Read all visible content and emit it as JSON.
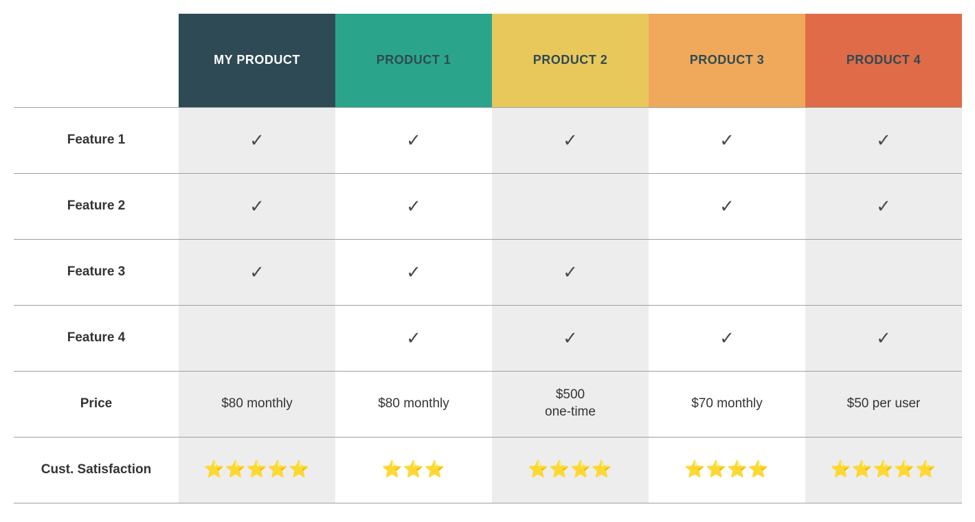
{
  "table": {
    "type": "comparison-table",
    "background_color": "#ffffff",
    "shaded_column_bg": "#ededed",
    "border_color": "#9e9e9e",
    "checkmark_glyph": "✓",
    "checkmark_color": "#4a4a4a",
    "star_glyph": "⭐",
    "row_label_fontsize": 18,
    "cell_fontsize": 19,
    "header_fontsize": 18,
    "columns": [
      {
        "key": "my_product",
        "label": "MY PRODUCT",
        "header_bg": "#2e4a54",
        "header_text_color": "#ffffff",
        "shaded": true
      },
      {
        "key": "product_1",
        "label": "PRODUCT 1",
        "header_bg": "#2aa58b",
        "header_text_color": "#2e4a54",
        "shaded": false
      },
      {
        "key": "product_2",
        "label": "PRODUCT 2",
        "header_bg": "#e8c85b",
        "header_text_color": "#2e4a54",
        "shaded": true
      },
      {
        "key": "product_3",
        "label": "PRODUCT 3",
        "header_bg": "#f0a95a",
        "header_text_color": "#2e4a54",
        "shaded": false
      },
      {
        "key": "product_4",
        "label": "PRODUCT 4",
        "header_bg": "#e06b48",
        "header_text_color": "#2e4a54",
        "shaded": true
      }
    ],
    "rows": [
      {
        "label": "Feature 1",
        "type": "check",
        "values": {
          "my_product": true,
          "product_1": true,
          "product_2": true,
          "product_3": true,
          "product_4": true
        }
      },
      {
        "label": "Feature 2",
        "type": "check",
        "values": {
          "my_product": true,
          "product_1": true,
          "product_2": false,
          "product_3": true,
          "product_4": true
        }
      },
      {
        "label": "Feature 3",
        "type": "check",
        "values": {
          "my_product": true,
          "product_1": true,
          "product_2": true,
          "product_3": false,
          "product_4": false
        }
      },
      {
        "label": "Feature 4",
        "type": "check",
        "values": {
          "my_product": false,
          "product_1": true,
          "product_2": true,
          "product_3": true,
          "product_4": true
        }
      },
      {
        "label": "Price",
        "type": "text",
        "values": {
          "my_product": "$80 monthly",
          "product_1": "$80 monthly",
          "product_2": "$500\none-time",
          "product_3": "$70 monthly",
          "product_4": "$50 per user"
        }
      },
      {
        "label": "Cust. Satisfaction",
        "type": "stars",
        "max_stars": 5,
        "values": {
          "my_product": 5,
          "product_1": 3,
          "product_2": 4,
          "product_3": 4,
          "product_4": 5
        }
      }
    ]
  }
}
